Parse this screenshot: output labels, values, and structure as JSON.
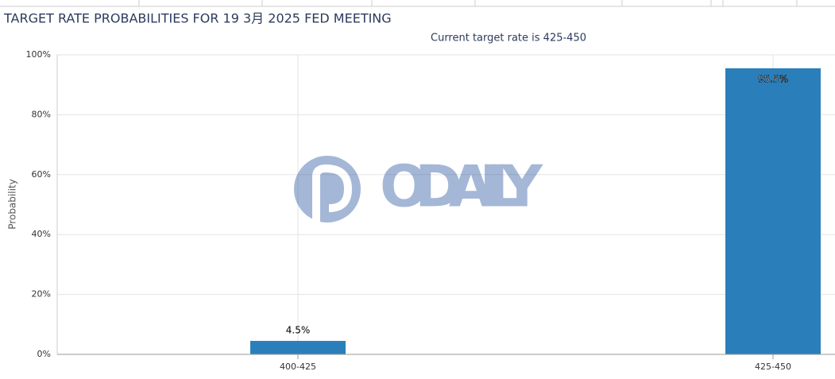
{
  "chart_data": {
    "type": "bar",
    "title": "TARGET RATE PROBABILITIES FOR 19 3月 2025 FED MEETING",
    "subtitle": "Current target rate is 425-450",
    "y_label": "Probability",
    "watermark": "ODAILY",
    "categories": [
      "400-425",
      "425-450"
    ],
    "values": [
      4.5,
      95.5
    ],
    "value_labels": [
      "4.5%",
      "95.5%"
    ],
    "color": "#2a7fba",
    "ylim": [
      0,
      100
    ],
    "yticks": [
      {
        "value": 0,
        "label": "0%"
      },
      {
        "value": 20,
        "label": "20%"
      },
      {
        "value": 40,
        "label": "40%"
      },
      {
        "value": 60,
        "label": "60%"
      },
      {
        "value": 80,
        "label": "80%"
      },
      {
        "value": 100,
        "label": "100%"
      }
    ],
    "grid": true
  }
}
